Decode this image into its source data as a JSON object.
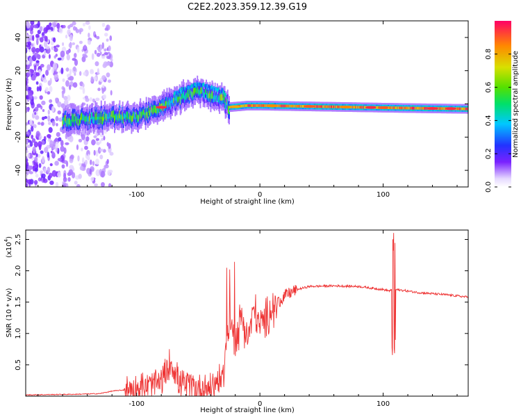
{
  "title": "C2E2.2023.359.12.39.G19",
  "chart_data": [
    {
      "type": "heatmap",
      "xlabel": "Height of straight line (km)",
      "ylabel": "Frequency (Hz)",
      "xlim": [
        -190,
        169
      ],
      "ylim": [
        -50,
        50
      ],
      "x_ticks": [
        -100,
        0,
        100
      ],
      "y_ticks": [
        -40,
        -20,
        0,
        20,
        40
      ],
      "colorbar": {
        "label": "Normalized spectral amplitude",
        "range": [
          0.0,
          1.0
        ],
        "ticks": [
          "0.0",
          "0.2",
          "0.4",
          "0.6",
          "0.8"
        ]
      },
      "doppler_track": [
        {
          "x": -158,
          "y": -10
        },
        {
          "x": -140,
          "y": -9
        },
        {
          "x": -120,
          "y": -8
        },
        {
          "x": -100,
          "y": -8
        },
        {
          "x": -90,
          "y": -5
        },
        {
          "x": -80,
          "y": -2
        },
        {
          "x": -70,
          "y": 2
        },
        {
          "x": -60,
          "y": 5
        },
        {
          "x": -50,
          "y": 8
        },
        {
          "x": -40,
          "y": 5
        },
        {
          "x": -30,
          "y": 3
        },
        {
          "x": -25,
          "y": -2
        },
        {
          "x": -10,
          "y": -1
        },
        {
          "x": 0,
          "y": -1
        },
        {
          "x": 40,
          "y": -1.5
        },
        {
          "x": 80,
          "y": -2
        },
        {
          "x": 120,
          "y": -2.5
        },
        {
          "x": 169,
          "y": -3
        }
      ]
    },
    {
      "type": "line",
      "xlabel": "Height of straight line (km)",
      "ylabel": "SNR (10 * v/v)",
      "y_scale_label": "(x10",
      "y_scale_exp": "4",
      "xlim": [
        -190,
        169
      ],
      "ylim": [
        0,
        26500
      ],
      "x_ticks": [
        -100,
        0,
        100
      ],
      "y_ticks": [
        {
          "value": 5000,
          "label": "0.5"
        },
        {
          "value": 10000,
          "label": "1.0"
        },
        {
          "value": 15000,
          "label": "1.5"
        },
        {
          "value": 20000,
          "label": "2.0"
        },
        {
          "value": 25000,
          "label": "2.5"
        }
      ],
      "series": [
        {
          "color": "#ee3333",
          "x": [
            -190,
            -150,
            -130,
            -120,
            -110,
            -100,
            -90,
            -80,
            -72,
            -65,
            -60,
            -50,
            -40,
            -30,
            -25,
            -20,
            -15,
            -10,
            -5,
            0,
            10,
            20,
            30,
            40,
            60,
            80,
            100,
            105,
            108,
            110,
            115,
            130,
            150,
            169
          ],
          "y": [
            200,
            300,
            400,
            800,
            1000,
            1200,
            1500,
            2200,
            5500,
            2000,
            1800,
            1200,
            1500,
            3000,
            12000,
            8000,
            13000,
            9000,
            14000,
            11000,
            14000,
            16000,
            17000,
            17500,
            17600,
            17500,
            17000,
            16800,
            17000,
            17000,
            16900,
            16500,
            16200,
            15800
          ]
        }
      ]
    }
  ]
}
